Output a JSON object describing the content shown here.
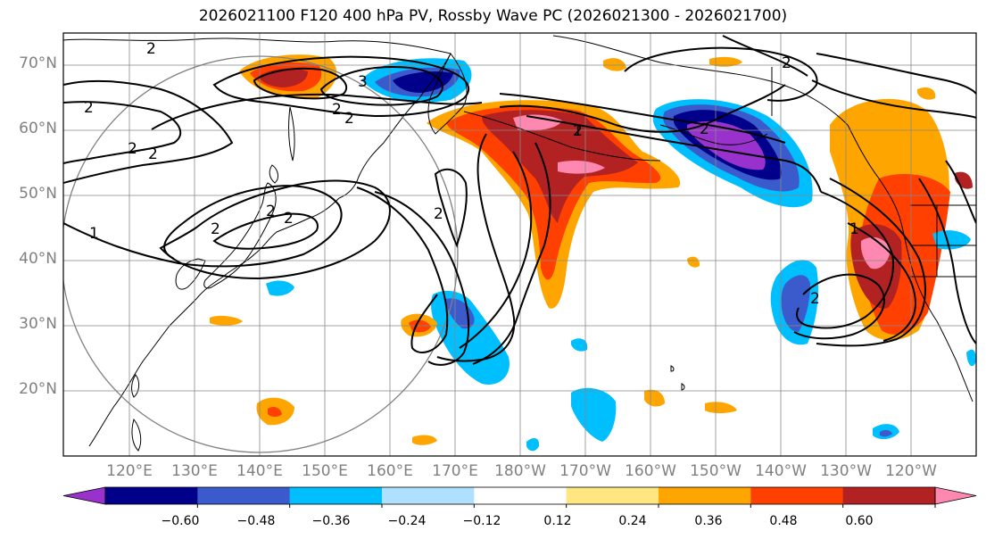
{
  "title": "2026021100 F120 400 hPa PV, Rossby Wave PC (2026021300 - 2026021700)",
  "lat_labels": [
    "70°N",
    "60°N",
    "50°N",
    "40°N",
    "30°N",
    "20°N"
  ],
  "lon_labels": [
    "120°E",
    "130°E",
    "140°E",
    "150°E",
    "160°E",
    "170°E",
    "180°W",
    "170°W",
    "160°W",
    "150°W",
    "140°W",
    "130°W",
    "120°W"
  ],
  "contour_labels": [
    "2",
    "3",
    "2",
    "2",
    "2",
    "2",
    "2",
    "2",
    "1",
    "2",
    "2",
    "2",
    "1",
    "2",
    "2",
    "2",
    "1",
    "2"
  ],
  "colorbar": {
    "ticks": [
      "−0.60",
      "−0.48",
      "−0.36",
      "−0.24",
      "−0.12",
      "0.12",
      "0.24",
      "0.36",
      "0.48",
      "0.60"
    ],
    "colors": [
      "#9932cc",
      "#00008b",
      "#3b5bcc",
      "#00bfff",
      "#b0e0ff",
      "#ffffff",
      "#ffe680",
      "#ffa500",
      "#ff4000",
      "#b22222",
      "#ff88b0"
    ]
  }
}
